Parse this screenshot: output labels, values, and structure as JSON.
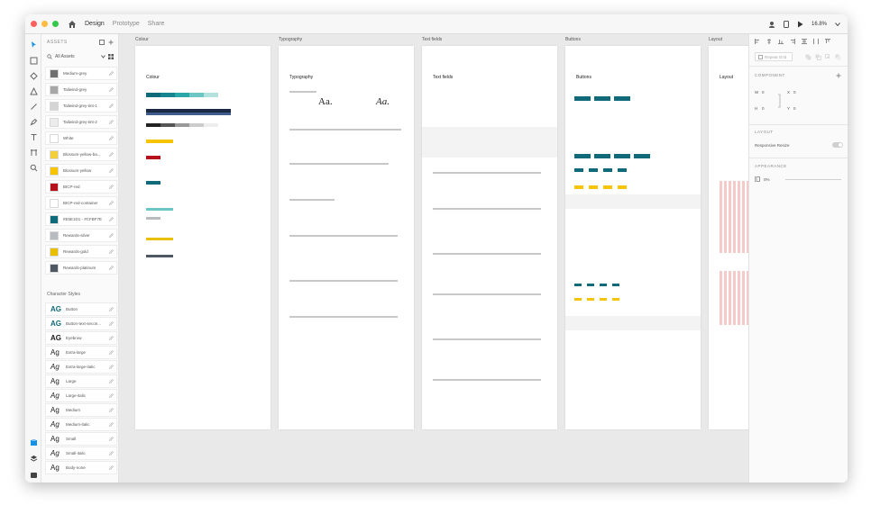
{
  "titlebar": {
    "tabs": [
      {
        "label": "Design",
        "active": true
      },
      {
        "label": "Prototype",
        "active": false
      },
      {
        "label": "Share",
        "active": false
      }
    ],
    "zoom": "16.8%",
    "traffic_colors": [
      "#fc605c",
      "#fdbc40",
      "#34c84a"
    ]
  },
  "assets": {
    "header": "ASSETS",
    "filter": "All Assets",
    "colors": [
      {
        "name": "Medium-grey",
        "color": "#6f6f6f"
      },
      {
        "name": "Tailwind-grey",
        "color": "#a7a7a7"
      },
      {
        "name": "Tailwind-grey-tint-1",
        "color": "#d4d4d4"
      },
      {
        "name": "Tailwind-grey-tint-2",
        "color": "#ececec"
      },
      {
        "name": "White",
        "color": "#ffffff"
      },
      {
        "name": "Blossum-yellow-ba...",
        "color": "#f2cf3b"
      },
      {
        "name": "Blossum-yellow",
        "color": "#f6c500"
      },
      {
        "name": "BICP-red",
        "color": "#b5121b"
      },
      {
        "name": "BICP-red-container",
        "color": "#ffffff"
      },
      {
        "name": "#E5E1D1 - #CFBF7E",
        "color": "#0f6a7a"
      },
      {
        "name": "Rewards-silver",
        "color": "#b8bcc0"
      },
      {
        "name": "Rewards-gold",
        "color": "#e8c000"
      },
      {
        "name": "Rewards-platinum",
        "color": "#4e5863"
      }
    ],
    "char_styles_header": "Character Styles",
    "char_styles": [
      {
        "name": "Button",
        "ag": "AG",
        "teal": true,
        "italic": false
      },
      {
        "name": "Button-text-secon...",
        "ag": "AG",
        "teal": true,
        "italic": false
      },
      {
        "name": "Eyebrow",
        "ag": "AG",
        "teal": false,
        "italic": false
      },
      {
        "name": "Extra-large",
        "ag": "Ag",
        "teal": false,
        "italic": false
      },
      {
        "name": "Extra-large-italic",
        "ag": "Ag",
        "teal": false,
        "italic": true
      },
      {
        "name": "Large",
        "ag": "Ag",
        "teal": false,
        "italic": false
      },
      {
        "name": "Large-italic",
        "ag": "Ag",
        "teal": false,
        "italic": true
      },
      {
        "name": "Medium",
        "ag": "Ag",
        "teal": false,
        "italic": false
      },
      {
        "name": "Medium-italic",
        "ag": "Ag",
        "teal": false,
        "italic": true
      },
      {
        "name": "Small",
        "ag": "Ag",
        "teal": false,
        "italic": false
      },
      {
        "name": "Small-italic",
        "ag": "Ag",
        "teal": false,
        "italic": true
      },
      {
        "name": "Body-none",
        "ag": "Ag",
        "teal": false,
        "italic": false
      }
    ]
  },
  "canvas": {
    "artboards": [
      {
        "title": "Colour",
        "heading": "Colour"
      },
      {
        "title": "Typography",
        "heading": "Typography"
      },
      {
        "title": "Text fields",
        "heading": "Text fields"
      },
      {
        "title": "Buttons",
        "heading": "Buttons"
      },
      {
        "title": "Layout",
        "heading": "Layout"
      }
    ]
  },
  "inspector": {
    "repeat_grid": "Repeat Grid",
    "component": "COMPONENT",
    "w_label": "W",
    "w_value": "0",
    "h_label": "H",
    "h_value": "0",
    "x_label": "X",
    "x_value": "0",
    "y_label": "Y",
    "y_value": "0",
    "layout": "LAYOUT",
    "responsive_resize": "Responsive Resize",
    "appearance": "APPEARANCE",
    "opacity": "0%"
  },
  "accent": "#1592e6",
  "teal": "#0f6a7a"
}
